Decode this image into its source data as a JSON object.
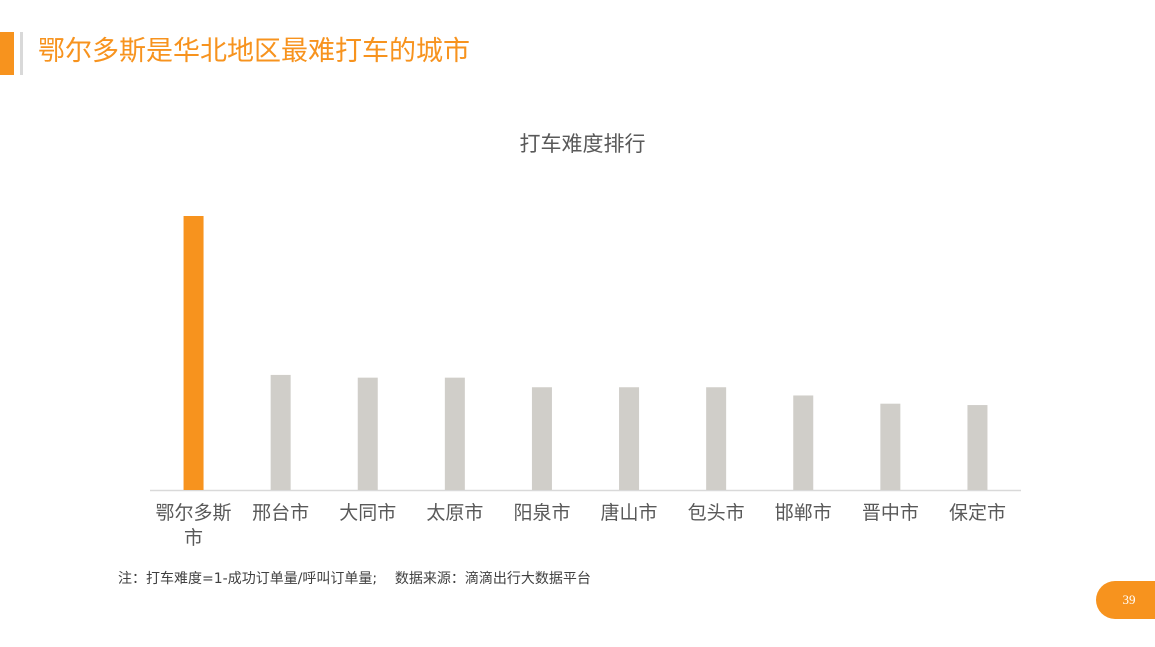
{
  "slide": {
    "title": "鄂尔多斯是华北地区最难打车的城市",
    "note": "注：打车难度=1-成功订单量/呼叫订单量;    数据来源：滴滴出行大数据平台",
    "page_number": "39"
  },
  "colors": {
    "accent": "#f7931e",
    "bar_default": "#d0cec9",
    "axis": "#d9d9d9",
    "tick_text": "#595959"
  },
  "chart_data": {
    "type": "bar",
    "title": "打车难度排行",
    "xlabel": "",
    "ylabel": "",
    "ylim": [
      0,
      1
    ],
    "grid": false,
    "legend": "none",
    "categories": [
      "鄂尔多斯市",
      "邢台市",
      "大同市",
      "太原市",
      "阳泉市",
      "唐山市",
      "包头市",
      "邯郸市",
      "晋中市",
      "保定市"
    ],
    "values": [
      1.0,
      0.42,
      0.41,
      0.41,
      0.375,
      0.375,
      0.375,
      0.345,
      0.315,
      0.31
    ],
    "highlight_index": 0
  }
}
